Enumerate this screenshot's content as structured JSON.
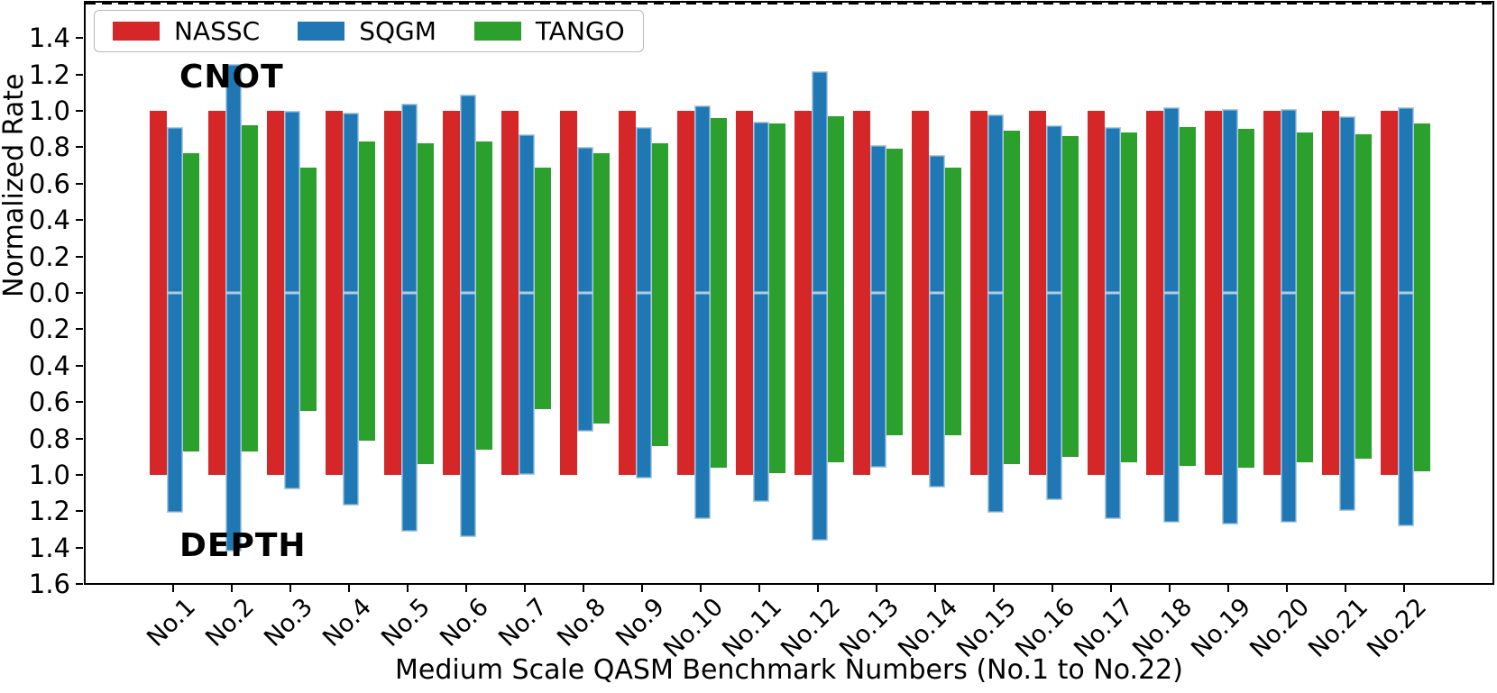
{
  "figure": {
    "y_axis_title": "Normalized Rate",
    "x_axis_title": "Medium Scale QASM Benchmark Numbers (No.1 to No.22)",
    "annotations": {
      "top_half": "CNOT",
      "bottom_half": "DEPTH"
    }
  },
  "legend": {
    "items": [
      {
        "label": "NASSC",
        "color": "#d62728"
      },
      {
        "label": "SQGM",
        "color": "#1f77b4"
      },
      {
        "label": "TANGO",
        "color": "#2ca02c"
      }
    ]
  },
  "chart_data": {
    "type": "bar",
    "title": "",
    "xlabel": "Medium Scale QASM Benchmark Numbers (No.1 to No.22)",
    "ylabel": "Normalized Rate",
    "layout": "mirrored dual panel: CNOT rates plotted upward, DEPTH rates plotted downward from shared dashed zero line",
    "ylim": [
      -1.6,
      1.6
    ],
    "grid": false,
    "legend_position": "upper left",
    "zero_line_style": "black dashed",
    "y_tick_values": [
      1.4,
      1.2,
      1.0,
      0.8,
      0.6,
      0.4,
      0.2,
      0.0,
      -0.2,
      -0.4,
      -0.6,
      -0.8,
      -1.0,
      -1.2,
      -1.4,
      -1.6
    ],
    "y_tick_labels": [
      "1.4",
      "1.2",
      "1.0",
      "0.8",
      "0.6",
      "0.4",
      "0.2",
      "0.0",
      "0.2",
      "0.4",
      "0.6",
      "0.8",
      "1.0",
      "1.2",
      "1.4",
      "1.6"
    ],
    "categories": [
      "No.1",
      "No.2",
      "No.3",
      "No.4",
      "No.5",
      "No.6",
      "No.7",
      "No.8",
      "No.9",
      "No.10",
      "No.11",
      "No.12",
      "No.13",
      "No.14",
      "No.15",
      "No.16",
      "No.17",
      "No.18",
      "No.19",
      "No.20",
      "No.21",
      "No.22"
    ],
    "panels": [
      {
        "name": "CNOT",
        "direction": "up",
        "series": [
          {
            "name": "NASSC",
            "color": "#d62728",
            "values": [
              1.0,
              1.0,
              1.0,
              1.0,
              1.0,
              1.0,
              1.0,
              1.0,
              1.0,
              1.0,
              1.0,
              1.0,
              1.0,
              1.0,
              1.0,
              1.0,
              1.0,
              1.0,
              1.0,
              1.0,
              1.0,
              1.0
            ]
          },
          {
            "name": "SQGM",
            "color": "#1f77b4",
            "edge_color": "#aecde3",
            "values": [
              0.91,
              1.26,
              1.0,
              0.99,
              1.04,
              1.09,
              0.87,
              0.8,
              0.91,
              1.03,
              0.94,
              1.22,
              0.81,
              0.76,
              0.98,
              0.92,
              0.91,
              1.02,
              1.01,
              1.01,
              0.97,
              1.02
            ]
          },
          {
            "name": "TANGO",
            "color": "#2ca02c",
            "values": [
              0.77,
              0.92,
              0.69,
              0.83,
              0.82,
              0.83,
              0.69,
              0.77,
              0.82,
              0.96,
              0.93,
              0.97,
              0.79,
              0.69,
              0.89,
              0.86,
              0.88,
              0.91,
              0.9,
              0.88,
              0.87,
              0.93
            ]
          }
        ]
      },
      {
        "name": "DEPTH",
        "direction": "down",
        "series": [
          {
            "name": "NASSC",
            "color": "#d62728",
            "values": [
              1.0,
              1.0,
              1.0,
              1.0,
              1.0,
              1.0,
              1.0,
              1.0,
              1.0,
              1.0,
              1.0,
              1.0,
              1.0,
              1.0,
              1.0,
              1.0,
              1.0,
              1.0,
              1.0,
              1.0,
              1.0,
              1.0
            ]
          },
          {
            "name": "SQGM",
            "color": "#1f77b4",
            "edge_color": "#aecde3",
            "values": [
              1.21,
              1.42,
              1.08,
              1.17,
              1.31,
              1.34,
              1.0,
              0.76,
              1.02,
              1.24,
              1.15,
              1.36,
              0.96,
              1.07,
              1.21,
              1.14,
              1.24,
              1.26,
              1.27,
              1.26,
              1.2,
              1.28
            ]
          },
          {
            "name": "TANGO",
            "color": "#2ca02c",
            "values": [
              0.87,
              0.87,
              0.65,
              0.81,
              0.94,
              0.86,
              0.64,
              0.72,
              0.84,
              0.96,
              0.99,
              0.93,
              0.78,
              0.78,
              0.94,
              0.9,
              0.93,
              0.95,
              0.96,
              0.93,
              0.91,
              0.98
            ]
          }
        ]
      }
    ]
  }
}
